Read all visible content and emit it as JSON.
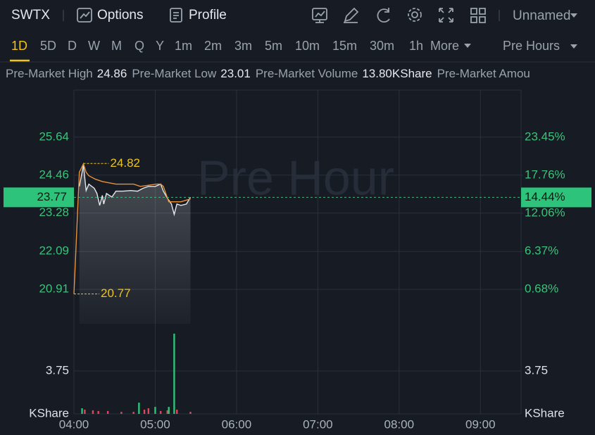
{
  "toolbar": {
    "symbol": "SWTX",
    "options": "Options",
    "profile": "Profile",
    "layout": "Unnamed"
  },
  "periods": [
    "1D",
    "5D",
    "D",
    "W",
    "M",
    "Q",
    "Y",
    "1m",
    "2m",
    "3m",
    "5m",
    "10m",
    "15m",
    "30m",
    "1h",
    "More"
  ],
  "session": "Pre Hours",
  "stats": [
    {
      "label": "Pre-Market High",
      "value": "24.86"
    },
    {
      "label": "Pre-Market Low",
      "value": "23.01"
    },
    {
      "label": "Pre-Market Volume",
      "value": "13.80KShare"
    },
    {
      "label": "Pre-Market Amou"
    }
  ],
  "chart_data": {
    "type": "line",
    "watermark": "Pre Hour",
    "xlim": [
      "04:00",
      "09:30"
    ],
    "xticks": [
      "04:00",
      "05:00",
      "06:00",
      "07:00",
      "08:00",
      "09:00"
    ],
    "ylim": [
      20.28,
      27.1
    ],
    "yticks": [
      25.64,
      24.46,
      23.28,
      22.09,
      20.91
    ],
    "y2lim": [
      -2.38,
      30.51
    ],
    "y2ticks": [
      {
        "value": 23.45,
        "label": "23.45%"
      },
      {
        "value": 17.76,
        "label": "17.76%"
      },
      {
        "value": 12.06,
        "label": "12.06%"
      },
      {
        "value": 6.37,
        "label": "6.37%"
      },
      {
        "value": 0.68,
        "label": "0.68%"
      }
    ],
    "grid": true,
    "series": [
      {
        "color": "#e6e8eb",
        "x": [
          "04:04",
          "04:07",
          "04:09",
          "04:11",
          "04:15",
          "04:17",
          "04:19",
          "04:21",
          "04:22",
          "04:24",
          "04:28",
          "04:31",
          "04:36",
          "04:42",
          "04:47",
          "04:51",
          "04:55",
          "05:00",
          "05:04",
          "05:06",
          "05:09",
          "05:12",
          "05:14",
          "05:16",
          "05:19",
          "05:23",
          "05:26"
        ],
        "values": [
          24.11,
          24.77,
          23.98,
          24.18,
          24.05,
          23.89,
          23.52,
          23.83,
          23.56,
          23.89,
          23.78,
          23.96,
          23.96,
          23.98,
          23.96,
          24.05,
          24.11,
          24.11,
          24.18,
          23.96,
          23.74,
          23.56,
          23.24,
          23.56,
          23.52,
          23.56,
          23.77
        ]
      },
      {
        "color": "#e8923a",
        "x": [
          "04:00",
          "04:04",
          "04:07",
          "04:09",
          "04:11",
          "04:16",
          "04:21",
          "04:31",
          "04:44",
          "04:49",
          "05:01",
          "05:04",
          "05:06",
          "05:10",
          "05:19",
          "05:26"
        ],
        "values": [
          20.77,
          24.55,
          24.81,
          24.55,
          24.44,
          24.33,
          24.26,
          24.18,
          24.18,
          24.11,
          24.18,
          24.18,
          24.11,
          23.63,
          23.63,
          23.72
        ]
      }
    ],
    "current": {
      "value": 23.77,
      "change": {
        "value": 14.44,
        "label": "14.44%"
      },
      "color": "#2dc37a"
    },
    "annotations": [
      {
        "value": 24.82,
        "x": "04:07"
      },
      {
        "value": 20.77,
        "x": "04:00"
      }
    ],
    "volume": {
      "unit": "KShare",
      "ylim": [
        0,
        7.87
      ],
      "yticks": [
        3.75
      ],
      "x": [
        "04:06",
        "04:08",
        "04:14",
        "04:18",
        "04:25",
        "04:35",
        "04:44",
        "04:48",
        "04:52",
        "04:55",
        "05:00",
        "05:04",
        "05:09",
        "05:10",
        "05:14",
        "05:16",
        "05:26"
      ],
      "values": [
        0.49,
        0.37,
        0.31,
        0.25,
        0.25,
        0.18,
        0.18,
        0.98,
        0.37,
        0.49,
        0.61,
        0.25,
        0.31,
        0.61,
        7.01,
        0.37,
        0.18
      ],
      "colors": [
        "#2dc37a",
        "#e0465a",
        "#e0465a",
        "#e0465a",
        "#e0465a",
        "#e0465a",
        "#e0465a",
        "#2dc37a",
        "#e0465a",
        "#e0465a",
        "#2dc37a",
        "#e0465a",
        "#e0465a",
        "#2dc37a",
        "#2dc37a",
        "#e0465a",
        "#e0465a"
      ]
    }
  }
}
